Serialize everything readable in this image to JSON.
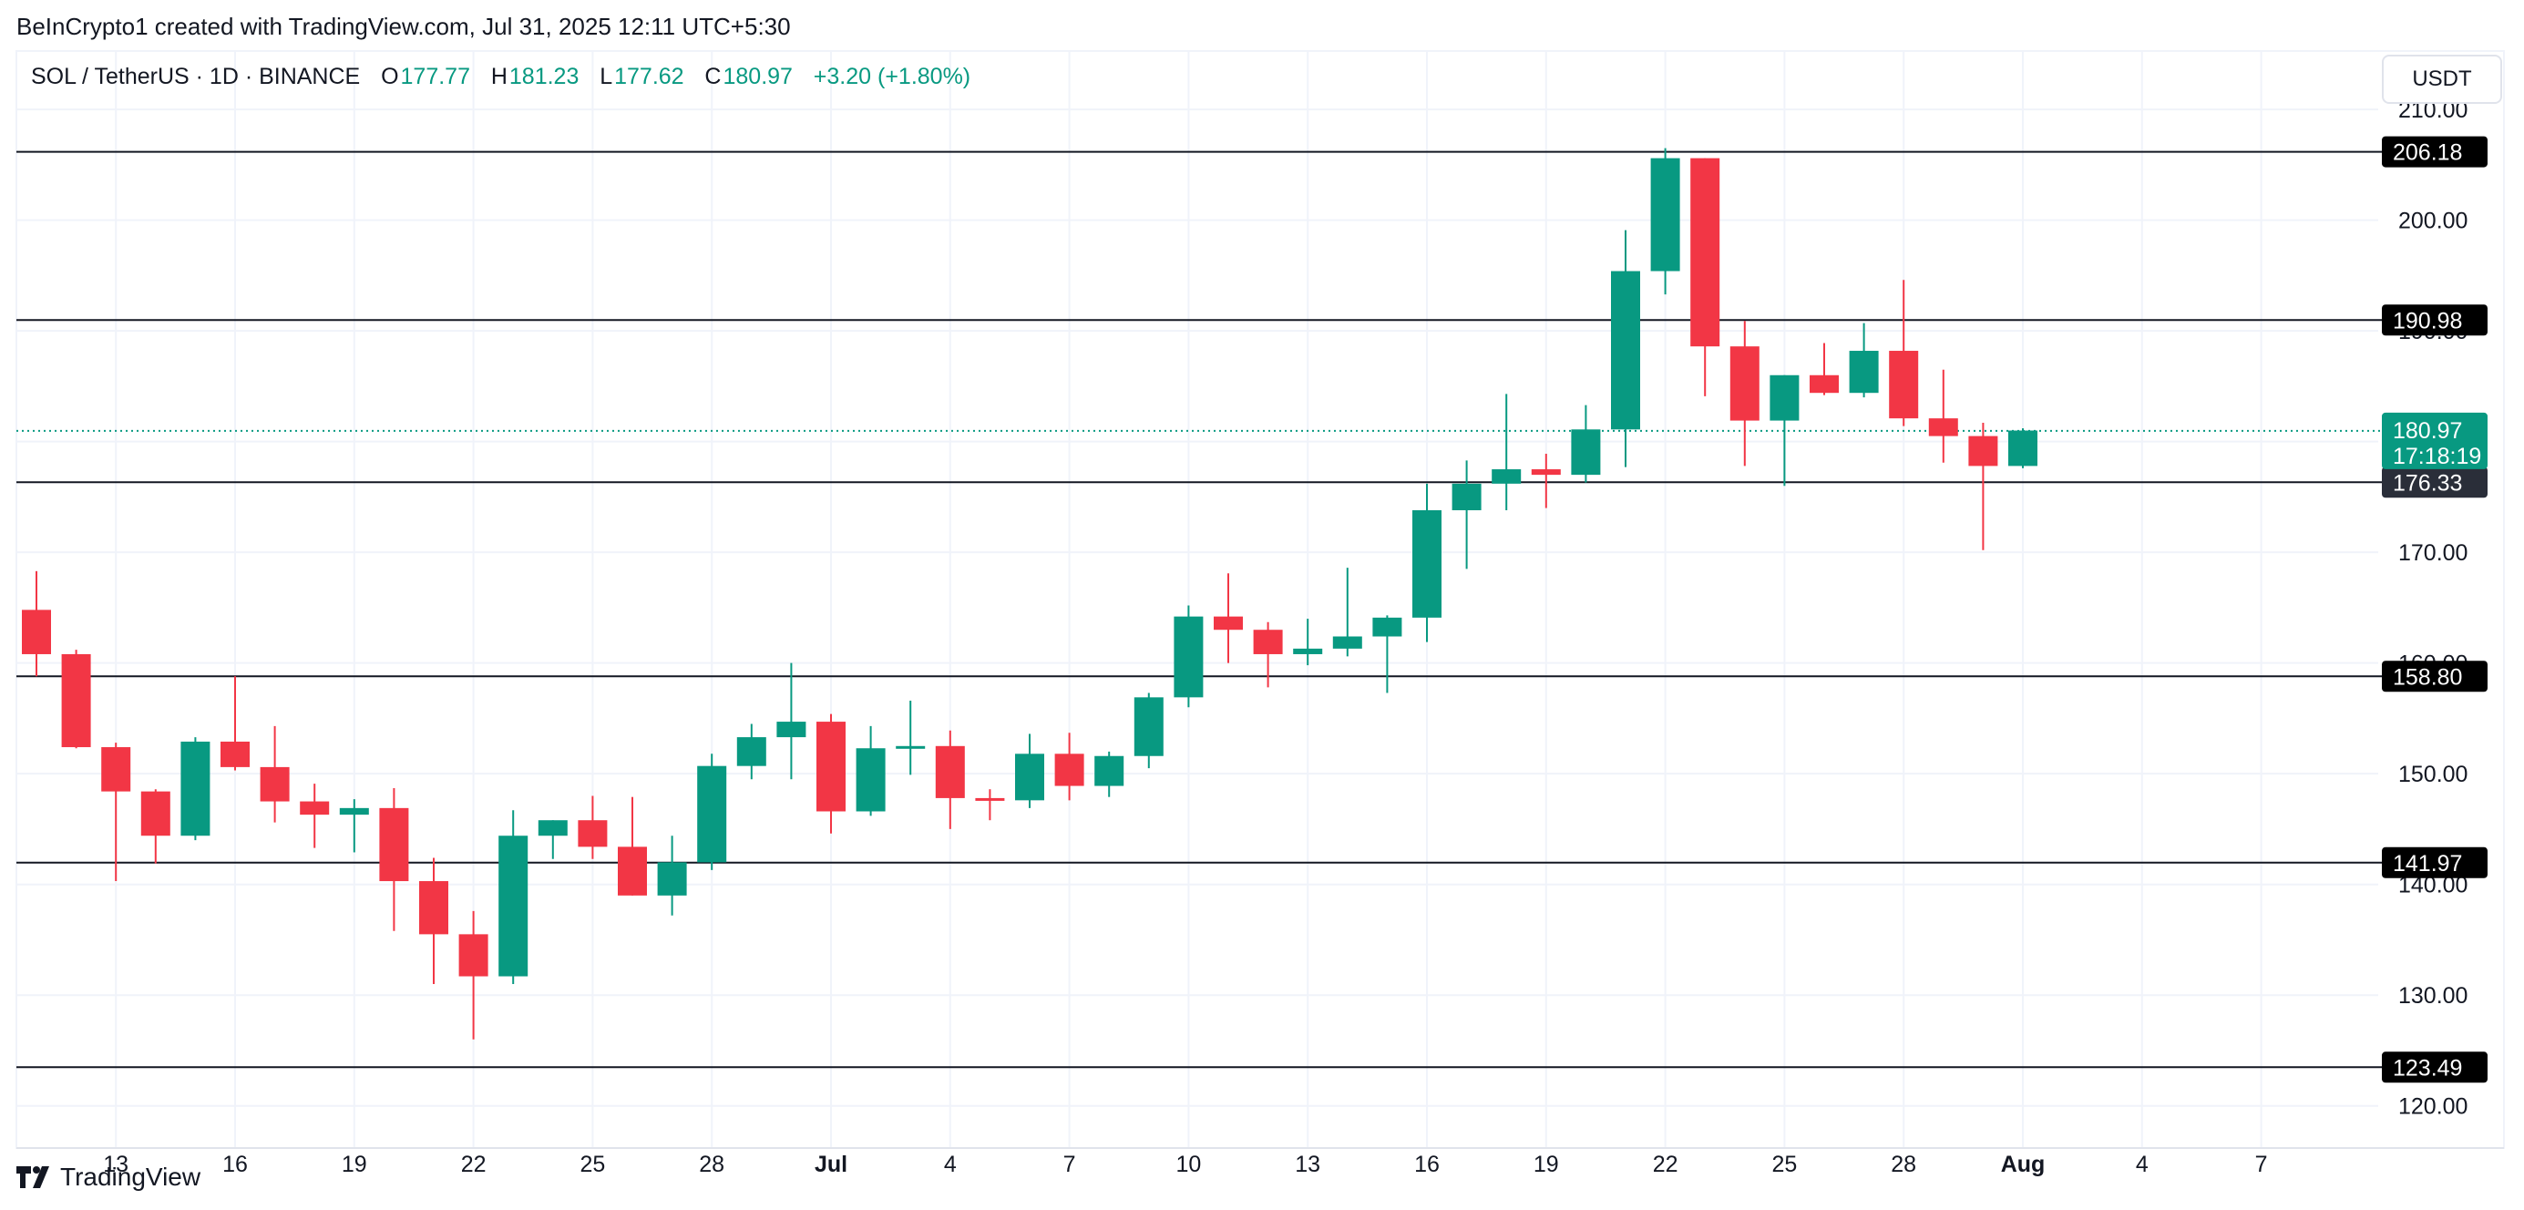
{
  "credit": "BeInCrypto1 created with TradingView.com, Jul 31, 2025 12:11 UTC+5:30",
  "legend": {
    "symbol": "SOL / TetherUS · 1D · BINANCE",
    "o_label": "O",
    "o_value": "177.77",
    "h_label": "H",
    "h_value": "181.23",
    "l_label": "L",
    "l_value": "177.62",
    "c_label": "C",
    "c_value": "180.97",
    "change": "+3.20 (+1.80%)"
  },
  "currency_button": "USDT",
  "brand": "TradingView",
  "colors": {
    "up": "#089981",
    "down": "#f23645",
    "grid": "#f0f3fa",
    "line": "#131722"
  },
  "chart_data": {
    "type": "candlestick",
    "title": "SOL / TetherUS · 1D · BINANCE",
    "ylim": [
      118,
      211
    ],
    "y_ticks": [
      120,
      130,
      140,
      150,
      160,
      170,
      180,
      190,
      200,
      210
    ],
    "y_tick_labels": [
      "120.00",
      "130.00",
      "140.00",
      "150.00",
      "160.00",
      "170.00",
      "180.00",
      "190.00",
      "200.00",
      "210.00"
    ],
    "x_labels": [
      {
        "day": 2,
        "label": "13"
      },
      {
        "day": 5,
        "label": "16"
      },
      {
        "day": 8,
        "label": "19"
      },
      {
        "day": 11,
        "label": "22"
      },
      {
        "day": 14,
        "label": "25"
      },
      {
        "day": 17,
        "label": "28"
      },
      {
        "day": 20,
        "label": "Jul",
        "bold": true
      },
      {
        "day": 23,
        "label": "4"
      },
      {
        "day": 26,
        "label": "7"
      },
      {
        "day": 29,
        "label": "10"
      },
      {
        "day": 32,
        "label": "13"
      },
      {
        "day": 35,
        "label": "16"
      },
      {
        "day": 38,
        "label": "19"
      },
      {
        "day": 41,
        "label": "22"
      },
      {
        "day": 44,
        "label": "25"
      },
      {
        "day": 47,
        "label": "28"
      },
      {
        "day": 50,
        "label": "Aug",
        "bold": true
      },
      {
        "day": 53,
        "label": "4"
      },
      {
        "day": 56,
        "label": "7"
      }
    ],
    "candles": [
      {
        "date": "Jun 11",
        "o": 164.8,
        "h": 168.3,
        "l": 158.8,
        "c": 160.8
      },
      {
        "date": "Jun 12",
        "o": 160.8,
        "h": 161.2,
        "l": 152.3,
        "c": 152.4
      },
      {
        "date": "Jun 13",
        "o": 152.4,
        "h": 152.8,
        "l": 140.3,
        "c": 148.4
      },
      {
        "date": "Jun 14",
        "o": 148.4,
        "h": 148.6,
        "l": 141.9,
        "c": 144.4
      },
      {
        "date": "Jun 15",
        "o": 144.4,
        "h": 153.3,
        "l": 144.0,
        "c": 152.9
      },
      {
        "date": "Jun 16",
        "o": 152.9,
        "h": 158.8,
        "l": 150.3,
        "c": 150.6
      },
      {
        "date": "Jun 17",
        "o": 150.6,
        "h": 154.3,
        "l": 145.6,
        "c": 147.5
      },
      {
        "date": "Jun 18",
        "o": 147.5,
        "h": 149.1,
        "l": 143.3,
        "c": 146.3
      },
      {
        "date": "Jun 19",
        "o": 146.3,
        "h": 147.7,
        "l": 142.9,
        "c": 146.9
      },
      {
        "date": "Jun 20",
        "o": 146.9,
        "h": 148.7,
        "l": 135.8,
        "c": 140.3
      },
      {
        "date": "Jun 21",
        "o": 140.3,
        "h": 142.4,
        "l": 131.0,
        "c": 135.5
      },
      {
        "date": "Jun 22",
        "o": 135.5,
        "h": 137.6,
        "l": 126.0,
        "c": 131.7
      },
      {
        "date": "Jun 23",
        "o": 131.7,
        "h": 146.7,
        "l": 131.0,
        "c": 144.4
      },
      {
        "date": "Jun 24",
        "o": 144.4,
        "h": 145.8,
        "l": 142.3,
        "c": 145.8
      },
      {
        "date": "Jun 25",
        "o": 145.8,
        "h": 148.0,
        "l": 142.3,
        "c": 143.4
      },
      {
        "date": "Jun 26",
        "o": 143.4,
        "h": 147.9,
        "l": 139.0,
        "c": 139.0
      },
      {
        "date": "Jun 27",
        "o": 139.0,
        "h": 144.4,
        "l": 137.2,
        "c": 142.0
      },
      {
        "date": "Jun 28",
        "o": 142.0,
        "h": 151.8,
        "l": 141.3,
        "c": 150.7
      },
      {
        "date": "Jun 29",
        "o": 150.7,
        "h": 154.5,
        "l": 149.5,
        "c": 153.3
      },
      {
        "date": "Jun 30",
        "o": 153.3,
        "h": 160.0,
        "l": 149.5,
        "c": 154.7
      },
      {
        "date": "Jul 1",
        "o": 154.7,
        "h": 155.4,
        "l": 144.6,
        "c": 146.6
      },
      {
        "date": "Jul 2",
        "o": 146.6,
        "h": 154.3,
        "l": 146.2,
        "c": 152.3
      },
      {
        "date": "Jul 3",
        "o": 152.3,
        "h": 156.6,
        "l": 149.9,
        "c": 152.5
      },
      {
        "date": "Jul 4",
        "o": 152.5,
        "h": 153.9,
        "l": 145.0,
        "c": 147.8
      },
      {
        "date": "Jul 5",
        "o": 147.8,
        "h": 148.6,
        "l": 145.8,
        "c": 147.6
      },
      {
        "date": "Jul 6",
        "o": 147.6,
        "h": 153.6,
        "l": 146.9,
        "c": 151.8
      },
      {
        "date": "Jul 7",
        "o": 151.8,
        "h": 153.7,
        "l": 147.6,
        "c": 148.9
      },
      {
        "date": "Jul 8",
        "o": 148.9,
        "h": 152.0,
        "l": 147.9,
        "c": 151.6
      },
      {
        "date": "Jul 9",
        "o": 151.6,
        "h": 157.3,
        "l": 150.5,
        "c": 156.9
      },
      {
        "date": "Jul 10",
        "o": 156.9,
        "h": 165.2,
        "l": 156.0,
        "c": 164.2
      },
      {
        "date": "Jul 11",
        "o": 164.2,
        "h": 168.1,
        "l": 160.0,
        "c": 163.0
      },
      {
        "date": "Jul 12",
        "o": 163.0,
        "h": 163.7,
        "l": 157.8,
        "c": 160.8
      },
      {
        "date": "Jul 13",
        "o": 160.8,
        "h": 164.0,
        "l": 159.8,
        "c": 161.3
      },
      {
        "date": "Jul 14",
        "o": 161.3,
        "h": 168.6,
        "l": 160.6,
        "c": 162.4
      },
      {
        "date": "Jul 15",
        "o": 162.4,
        "h": 164.3,
        "l": 157.3,
        "c": 164.1
      },
      {
        "date": "Jul 16",
        "o": 164.1,
        "h": 176.2,
        "l": 161.9,
        "c": 173.8
      },
      {
        "date": "Jul 17",
        "o": 173.8,
        "h": 178.3,
        "l": 168.5,
        "c": 176.2
      },
      {
        "date": "Jul 18",
        "o": 176.2,
        "h": 184.3,
        "l": 173.8,
        "c": 177.5
      },
      {
        "date": "Jul 19",
        "o": 177.5,
        "h": 178.9,
        "l": 174.0,
        "c": 177.0
      },
      {
        "date": "Jul 20",
        "o": 177.0,
        "h": 183.3,
        "l": 176.3,
        "c": 181.1
      },
      {
        "date": "Jul 21",
        "o": 181.1,
        "h": 199.1,
        "l": 177.7,
        "c": 195.4
      },
      {
        "date": "Jul 22",
        "o": 195.4,
        "h": 206.5,
        "l": 193.3,
        "c": 205.6
      },
      {
        "date": "Jul 23",
        "o": 205.6,
        "h": 205.6,
        "l": 184.1,
        "c": 188.6
      },
      {
        "date": "Jul 24",
        "o": 188.6,
        "h": 190.9,
        "l": 177.8,
        "c": 181.9
      },
      {
        "date": "Jul 25",
        "o": 181.9,
        "h": 186.0,
        "l": 176.0,
        "c": 186.0
      },
      {
        "date": "Jul 26",
        "o": 186.0,
        "h": 188.9,
        "l": 184.2,
        "c": 184.4
      },
      {
        "date": "Jul 27",
        "o": 184.4,
        "h": 190.7,
        "l": 184.0,
        "c": 188.2
      },
      {
        "date": "Jul 28",
        "o": 188.2,
        "h": 194.6,
        "l": 181.4,
        "c": 182.1
      },
      {
        "date": "Jul 29",
        "o": 182.1,
        "h": 186.5,
        "l": 178.1,
        "c": 180.5
      },
      {
        "date": "Jul 30",
        "o": 180.5,
        "h": 181.7,
        "l": 170.2,
        "c": 177.8
      },
      {
        "date": "Jul 31",
        "o": 177.8,
        "h": 181.2,
        "l": 177.6,
        "c": 181.0
      }
    ],
    "horizontal_lines": [
      {
        "value": 206.18,
        "label": "206.18"
      },
      {
        "value": 190.98,
        "label": "190.98"
      },
      {
        "value": 176.33,
        "label": "176.33"
      },
      {
        "value": 158.8,
        "label": "158.80"
      },
      {
        "value": 141.97,
        "label": "141.97"
      },
      {
        "value": 123.49,
        "label": "123.49"
      }
    ],
    "last_price": {
      "value": 180.97,
      "label": "180.97",
      "countdown": "17:18:19"
    },
    "ylabel": "USDT"
  }
}
